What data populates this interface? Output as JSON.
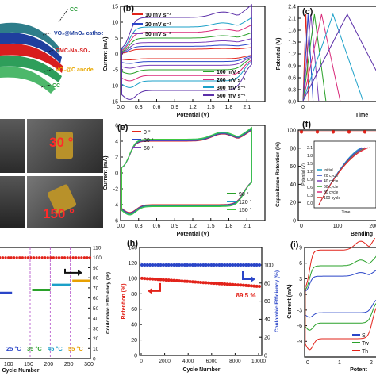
{
  "panel_a": {
    "labels": [
      "CC",
      "VO₂@MnO₂ cathode",
      "CMC-Na₂SO₄",
      "VO₂@C anode",
      "CC"
    ],
    "label_colors": [
      "#2e9e3e",
      "#1f3f9e",
      "#d81e1e",
      "#e8a800",
      "#2e9e3e"
    ]
  },
  "panel_d": {
    "angle_labels": [
      "30 °",
      "150 °"
    ]
  },
  "chart_data": [
    {
      "panel": "b",
      "type": "line",
      "panel_letter": "(b)",
      "xlabel": "Potential (V)",
      "ylabel": "Current (mA)",
      "xlim": [
        0.0,
        2.4
      ],
      "ylim": [
        -15,
        15
      ],
      "xticks": [
        "0.0",
        "0.3",
        "0.6",
        "0.9",
        "1.2",
        "1.5",
        "1.8",
        "2.1"
      ],
      "yticks": [
        "-15",
        "-10",
        "-5",
        "0",
        "5",
        "10",
        "15"
      ],
      "series": [
        {
          "name": "10 mV s⁻¹",
          "color": "#e2231a",
          "amp": 1.5
        },
        {
          "name": "20 mV s⁻¹",
          "color": "#2a45c8",
          "amp": 2.4
        },
        {
          "name": "50 mV s⁻¹",
          "color": "#7b3fb8",
          "amp": 3.6
        },
        {
          "name": "100 mV s⁻¹",
          "color": "#2aa12a",
          "amp": 5.0
        },
        {
          "name": "200 mV s⁻¹",
          "color": "#d92b7a",
          "amp": 6.8
        },
        {
          "name": "300 mV s⁻¹",
          "color": "#1ba0c8",
          "amp": 8.5
        },
        {
          "name": "500 mV s⁻¹",
          "color": "#5b2fa8",
          "amp": 11.5
        }
      ]
    },
    {
      "panel": "c",
      "type": "line",
      "panel_letter": "(c)",
      "xlabel": "Time",
      "ylabel": "Potential (V)",
      "ylim": [
        0.0,
        2.4
      ],
      "xlim": [
        0,
        120
      ],
      "yticks": [
        "0.0",
        "0.3",
        "0.6",
        "0.9",
        "1.2",
        "1.5",
        "1.8",
        "2.1",
        "2.4"
      ],
      "xticks": [
        "0",
        "100"
      ],
      "series": [
        {
          "color": "#e2231a",
          "t": 4
        },
        {
          "color": "#2a45c8",
          "t": 7
        },
        {
          "color": "#7b3fb8",
          "t": 11
        },
        {
          "color": "#2aa12a",
          "t": 16
        },
        {
          "color": "#d92b7a",
          "t": 26
        },
        {
          "color": "#1ba0c8",
          "t": 42
        },
        {
          "color": "#5b2fa8",
          "t": 62
        }
      ]
    },
    {
      "panel": "e",
      "type": "line",
      "panel_letter": "(e)",
      "xlabel": "Potential (V)",
      "ylabel": "Current (mA)",
      "xlim": [
        0.0,
        2.4
      ],
      "ylim": [
        -6,
        6
      ],
      "xticks": [
        "0.0",
        "0.3",
        "0.6",
        "0.9",
        "1.2",
        "1.5",
        "1.8",
        "2.1"
      ],
      "yticks": [
        "-6",
        "-4",
        "-2",
        "0",
        "2",
        "4",
        "6"
      ],
      "series": [
        {
          "name": "0 °",
          "color": "#e2231a"
        },
        {
          "name": "30 °",
          "color": "#2a45c8"
        },
        {
          "name": "60 °",
          "color": "#7b3fb8"
        },
        {
          "name": "90 °",
          "color": "#2aa12a"
        },
        {
          "name": "120 °",
          "color": "#1ba0c8"
        },
        {
          "name": "150 °",
          "color": "#3fc83f"
        }
      ]
    },
    {
      "panel": "f",
      "type": "line",
      "panel_letter": "(f)",
      "xlabel": "Bending",
      "ylabel": "Capacitance Retention (%)",
      "ylim": [
        0,
        100
      ],
      "xlim": [
        0,
        250
      ],
      "yticks": [
        "0",
        "20",
        "40",
        "60",
        "80",
        "100"
      ],
      "xticks": [
        "0",
        "100",
        "200"
      ],
      "inset": {
        "xlabel": "Time",
        "ylabel": "Potential (V)",
        "yticks": [
          "0.0",
          "0.3",
          "0.6",
          "0.9",
          "1.2",
          "1.5",
          "1.8",
          "2.1"
        ],
        "legend": [
          "Initial",
          "20 cycle",
          "40 cycle",
          "60 cycle",
          "80 cycle",
          "100 cycle"
        ],
        "legend_colors": [
          "#1ba0c8",
          "#2a45c8",
          "#7b3fb8",
          "#2aa12a",
          "#d92b7a",
          "#e2231a"
        ]
      }
    },
    {
      "panel": "g",
      "type": "scatter",
      "xlabel": "Cycle Number",
      "ylabel_right": "Coulombic Efficiency (%)",
      "xlim": [
        0,
        300
      ],
      "xticks": [
        "100",
        "150",
        "200",
        "250",
        "300"
      ],
      "yticks_right": [
        "0",
        "10",
        "20",
        "30",
        "40",
        "50",
        "60",
        "70",
        "80",
        "90",
        "100",
        "110"
      ],
      "temps": [
        "25 °C",
        "35 °C",
        "45 °C",
        "55 °C"
      ],
      "temp_colors": [
        "#2a45c8",
        "#2aa12a",
        "#1ba0c8",
        "#e8a000"
      ],
      "segments": [
        {
          "x0": 75,
          "x1": 105,
          "y": 65
        },
        {
          "x0": 155,
          "x1": 200,
          "y": 68
        },
        {
          "x0": 205,
          "x1": 250,
          "y": 73
        },
        {
          "x0": 255,
          "x1": 300,
          "y": 77
        }
      ]
    },
    {
      "panel": "h",
      "type": "scatter",
      "panel_letter": "(h)",
      "xlabel": "Cycle Number",
      "ylabel_left": "Retention (%)",
      "ylabel_right": "Coulombic Efficiency (%)",
      "xlim": [
        0,
        10000
      ],
      "ylim_left": [
        0,
        140
      ],
      "ylim_right": [
        0,
        100
      ],
      "xticks": [
        "0",
        "2000",
        "4000",
        "6000",
        "8000",
        "10000"
      ],
      "yticks_left": [
        "0",
        "20",
        "40",
        "60",
        "80",
        "100",
        "120",
        "140"
      ],
      "yticks_right": [
        "0",
        "20",
        "40",
        "60",
        "80",
        "100"
      ],
      "annotation": "89.5 %",
      "retention_start": 100,
      "retention_end": 89.5,
      "efficiency": 100
    },
    {
      "panel": "i",
      "type": "line",
      "panel_letter": "(i)",
      "xlabel": "Potent",
      "ylabel": "Current (mA)",
      "xlim": [
        0,
        2.4
      ],
      "ylim": [
        -12,
        9
      ],
      "xticks": [
        "0",
        "1",
        "2"
      ],
      "yticks": [
        "-9",
        "-6",
        "-3",
        "0",
        "3",
        "6",
        "9"
      ],
      "legend": [
        "Si",
        "Tw",
        "Th"
      ],
      "series": [
        {
          "name": "Si",
          "color": "#2a45c8",
          "amp": 3.5
        },
        {
          "name": "Tw",
          "color": "#2aa12a",
          "amp": 5.5
        },
        {
          "name": "Th",
          "color": "#e2231a",
          "amp": 8.5
        }
      ]
    }
  ]
}
